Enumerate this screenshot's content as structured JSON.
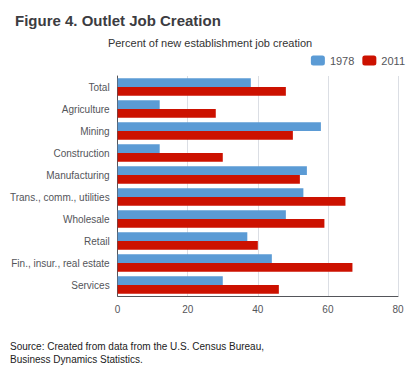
{
  "chart_data": {
    "type": "bar",
    "orientation": "horizontal",
    "title": "Figure 4. Outlet Job Creation",
    "subtitle": "Percent of new establishment job creation",
    "annotations": [
      "Source: Created from data from the U.S. Census Bureau,\nBusiness Dynamics Statistics."
    ],
    "categories": [
      "Total",
      "Agriculture",
      "Mining",
      "Construction",
      "Manufacturing",
      "Trans., comm., utilities",
      "Wholesale",
      "Retail",
      "Fin., insur., real estate",
      "Services"
    ],
    "series": [
      {
        "name": "1978",
        "color": "#5b9bd5",
        "values": [
          38,
          12,
          58,
          12,
          54,
          53,
          48,
          37,
          44,
          30
        ]
      },
      {
        "name": "2011",
        "color": "#cc1100",
        "values": [
          48,
          28,
          50,
          30,
          52,
          65,
          59,
          40,
          67,
          46
        ]
      }
    ],
    "xlim": [
      0,
      80
    ],
    "xticks": [
      0,
      20,
      40,
      60,
      80
    ],
    "grid": true,
    "legend": "upper right"
  }
}
